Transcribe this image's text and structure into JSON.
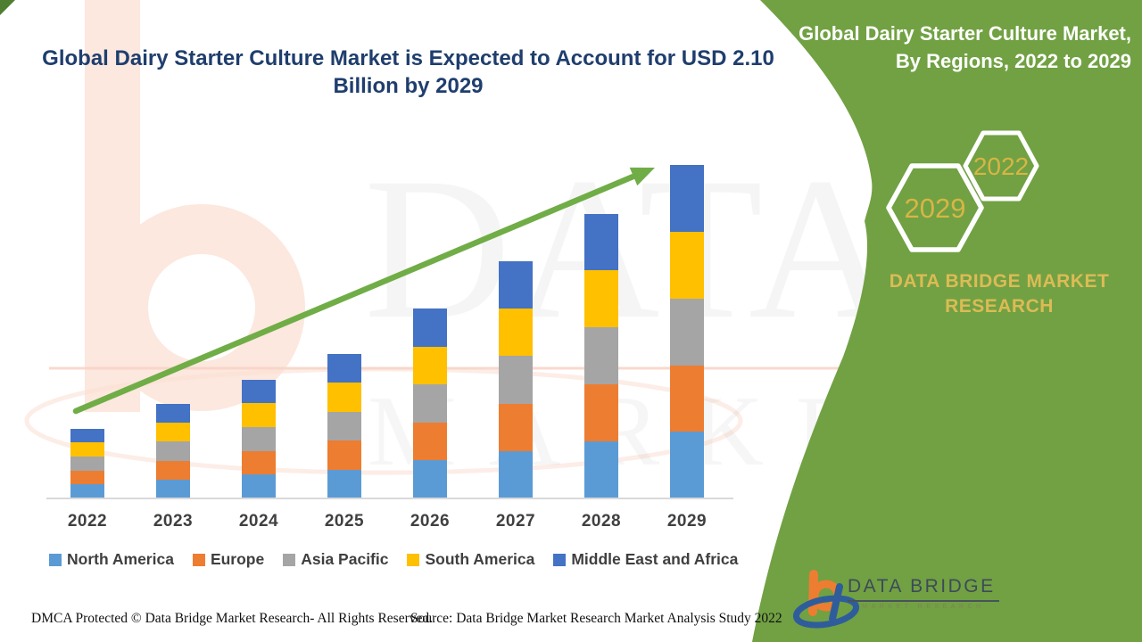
{
  "page": {
    "background": "#FFFFFF",
    "corner_triangle_color": "#4F7E31",
    "panel_green": "#71A143",
    "accent_gold": "#D8B545"
  },
  "title": {
    "line1": "Global Dairy Starter Culture Market is Expected to Account for USD 2.10",
    "line2": "Billion by 2029",
    "color": "#1F3E6E"
  },
  "chart_data": {
    "type": "bar",
    "stacked": true,
    "title": "Global Dairy Starter Culture Market is Expected to Account for USD 2.10 Billion by 2029",
    "unit": "USD Billion (estimated from bar heights; only the 2029 total of USD 2.10 Billion is stated)",
    "categories": [
      "2022",
      "2023",
      "2024",
      "2025",
      "2026",
      "2027",
      "2028",
      "2029"
    ],
    "totals": [
      0.44,
      0.6,
      0.75,
      0.91,
      1.2,
      1.49,
      1.8,
      2.1
    ],
    "series": [
      {
        "name": "North America",
        "color": "#5B9BD5",
        "values": [
          0.088,
          0.119,
          0.15,
          0.182,
          0.239,
          0.299,
          0.359,
          0.42
        ]
      },
      {
        "name": "Europe",
        "color": "#ED7D31",
        "values": [
          0.088,
          0.119,
          0.15,
          0.182,
          0.239,
          0.299,
          0.359,
          0.42
        ]
      },
      {
        "name": "Asia Pacific",
        "color": "#A5A5A5",
        "values": [
          0.088,
          0.119,
          0.15,
          0.182,
          0.239,
          0.299,
          0.359,
          0.42
        ]
      },
      {
        "name": "South America",
        "color": "#FFC000",
        "values": [
          0.088,
          0.119,
          0.15,
          0.182,
          0.239,
          0.299,
          0.359,
          0.42
        ]
      },
      {
        "name": "Middle East and Africa",
        "color": "#4472C4",
        "values": [
          0.088,
          0.119,
          0.15,
          0.182,
          0.239,
          0.299,
          0.359,
          0.42
        ]
      }
    ],
    "xlabel": "",
    "ylabel": "",
    "y_axis_shown": false,
    "gridlines": false,
    "legend_position": "bottom",
    "trend_arrow": {
      "present": true,
      "color": "#70AD47",
      "direction": "up-right"
    }
  },
  "side_panel": {
    "background": "#71A143",
    "heading_line1": "Global Dairy Starter Culture Market,",
    "heading_line2": "By Regions, 2022 to 2029",
    "hexagons": [
      {
        "label": "2029"
      },
      {
        "label": "2022"
      }
    ],
    "brand_line1": "DATA BRIDGE MARKET",
    "brand_line2": "RESEARCH"
  },
  "logo": {
    "name": "DATA BRIDGE",
    "tagline": "MARKET RESEARCH"
  },
  "watermark": {
    "row1": "DATA BRIDGE",
    "row2": "MARKET RESEARCH"
  },
  "footer": {
    "left": "DMCA Protected © Data Bridge Market Research- All Rights Reserved.",
    "right": "Source: Data Bridge Market Research Market Analysis Study 2022"
  }
}
